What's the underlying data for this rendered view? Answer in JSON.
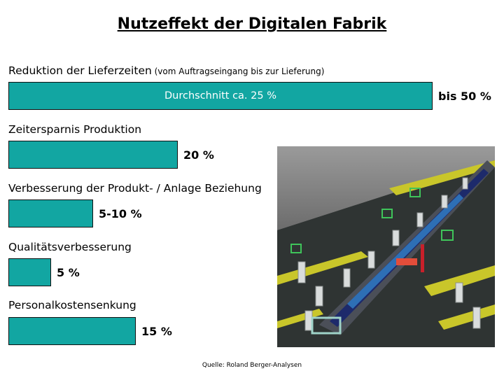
{
  "title": "Nutzeffekt der Digitalen Fabrik",
  "source": "Quelle: Roland Berger-Analysen",
  "colors": {
    "bar": "#12a6a2"
  },
  "chart_data": {
    "type": "bar",
    "orientation": "horizontal",
    "title": "Nutzeffekt der Digitalen Fabrik",
    "categories": [
      "Reduktion der Lieferzeiten",
      "Zeitersparnis Produktion",
      "Verbesserung der Produkt- / Anlage Beziehung",
      "Qualitätsverbesserung",
      "Personalkostensenkung"
    ],
    "category_notes": [
      "(vom Auftragseingang bis zur Lieferung)",
      "",
      "",
      "",
      ""
    ],
    "values": [
      50,
      20,
      10,
      5,
      15
    ],
    "value_labels": [
      "bis 50 %",
      "20 %",
      "5-10 %",
      "5 %",
      "15 %"
    ],
    "bar_annotations": [
      "Durchschnitt ca. 25 %",
      "",
      "",
      "",
      ""
    ],
    "grid": false,
    "legend": "none"
  },
  "picture": {
    "icon": "digital-factory-illustration-icon"
  }
}
